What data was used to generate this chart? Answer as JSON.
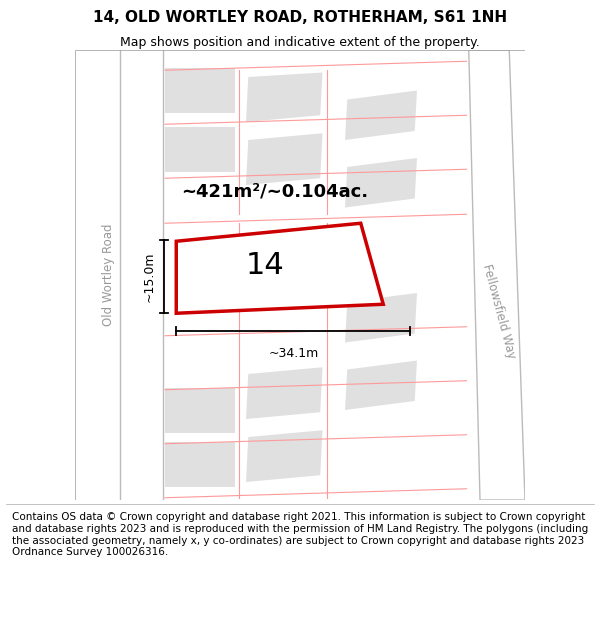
{
  "title": "14, OLD WORTLEY ROAD, ROTHERHAM, S61 1NH",
  "subtitle": "Map shows position and indicative extent of the property.",
  "footer": "Contains OS data © Crown copyright and database right 2021. This information is subject to Crown copyright and database rights 2023 and is reproduced with the permission of HM Land Registry. The polygons (including the associated geometry, namely x, y co-ordinates) are subject to Crown copyright and database rights 2023 Ordnance Survey 100026316.",
  "map_bg": "#f5f5f5",
  "building_fill": "#e0e0e0",
  "red_line_color": "#cc0000",
  "label_15m": "~15.0m",
  "label_34m": "~34.1m",
  "area_label": "~421m²/~0.104ac.",
  "plot_number": "14",
  "road_label_left": "Old Wortley Road",
  "road_label_right": "Fellowsfield Way",
  "title_fontsize": 11,
  "subtitle_fontsize": 9,
  "footer_fontsize": 7.5
}
